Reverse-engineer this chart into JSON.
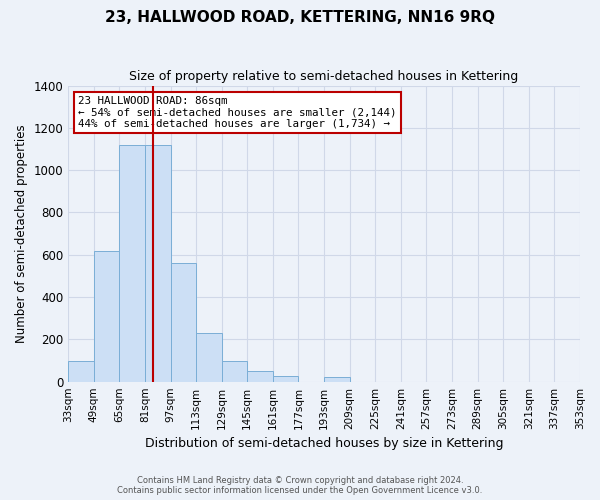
{
  "title": "23, HALLWOOD ROAD, KETTERING, NN16 9RQ",
  "subtitle": "Size of property relative to semi-detached houses in Kettering",
  "xlabel": "Distribution of semi-detached houses by size in Kettering",
  "ylabel": "Number of semi-detached properties",
  "bin_labels": [
    "33sqm",
    "49sqm",
    "65sqm",
    "81sqm",
    "97sqm",
    "113sqm",
    "129sqm",
    "145sqm",
    "161sqm",
    "177sqm",
    "193sqm",
    "209sqm",
    "225sqm",
    "241sqm",
    "257sqm",
    "273sqm",
    "289sqm",
    "305sqm",
    "321sqm",
    "337sqm",
    "353sqm"
  ],
  "bin_left_edges": [
    33,
    49,
    65,
    81,
    97,
    113,
    129,
    145,
    161,
    177,
    193,
    209,
    225,
    241,
    257,
    273,
    289,
    305,
    321,
    337
  ],
  "bin_all_edges": [
    33,
    49,
    65,
    81,
    97,
    113,
    129,
    145,
    161,
    177,
    193,
    209,
    225,
    241,
    257,
    273,
    289,
    305,
    321,
    337,
    353
  ],
  "bar_values": [
    100,
    620,
    1120,
    1120,
    560,
    230,
    100,
    50,
    25,
    0,
    20,
    0,
    0,
    0,
    0,
    0,
    0,
    0,
    0,
    0
  ],
  "bar_color": "#ccdff5",
  "bar_edge_color": "#7aaed6",
  "grid_color": "#d0d8e8",
  "background_color": "#edf2f9",
  "property_line_x": 86,
  "property_line_color": "#bb0000",
  "annotation_text": "23 HALLWOOD ROAD: 86sqm\n← 54% of semi-detached houses are smaller (2,144)\n44% of semi-detached houses are larger (1,734) →",
  "annotation_box_color": "#ffffff",
  "annotation_box_edge": "#bb0000",
  "ylim": [
    0,
    1400
  ],
  "yticks": [
    0,
    200,
    400,
    600,
    800,
    1000,
    1200,
    1400
  ],
  "footer_line1": "Contains HM Land Registry data © Crown copyright and database right 2024.",
  "footer_line2": "Contains public sector information licensed under the Open Government Licence v3.0."
}
